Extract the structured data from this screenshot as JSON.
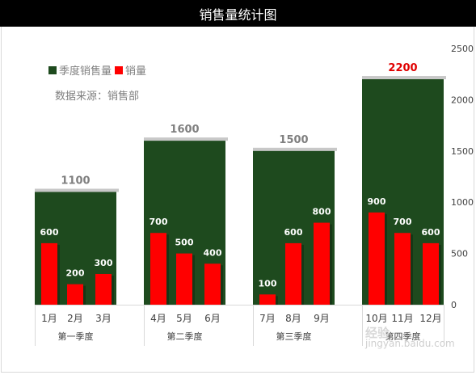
{
  "window": {
    "title": "销售量统计图"
  },
  "legend": {
    "quarter_label": "季度销售量",
    "month_label": "销量"
  },
  "source_text": "数据来源：销售部",
  "watermark": {
    "line1": "经验",
    "line2": "jingyan.baidu.com"
  },
  "colors": {
    "quarter": "#1e4a1e",
    "month": "#ff0000",
    "highlight": "#e00000",
    "label": "#7f7f7f"
  },
  "chart_data": {
    "type": "bar",
    "title": "销售量统计图",
    "ylim": [
      0,
      2500
    ],
    "yticks": [
      0,
      500,
      1000,
      1500,
      2000,
      2500
    ],
    "quarters": [
      {
        "name": "第一季度",
        "value": 1100
      },
      {
        "name": "第二季度",
        "value": 1600
      },
      {
        "name": "第三季度",
        "value": 1500
      },
      {
        "name": "第四季度",
        "value": 2200
      }
    ],
    "months": [
      "1月",
      "2月",
      "3月",
      "4月",
      "5月",
      "6月",
      "7月",
      "8月",
      "9月",
      "10月",
      "11月",
      "12月"
    ],
    "series": [
      {
        "name": "季度销售量",
        "values": [
          1100,
          1600,
          1500,
          2200
        ]
      },
      {
        "name": "销量",
        "values": [
          600,
          200,
          300,
          700,
          500,
          400,
          100,
          600,
          800,
          900,
          700,
          600
        ]
      }
    ],
    "highlight_quarter": "第四季度",
    "legend_position": "top-left",
    "grid": false
  }
}
